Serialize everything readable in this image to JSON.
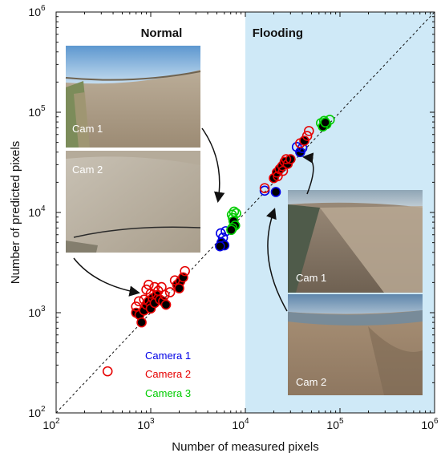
{
  "chart_data": {
    "type": "scatter",
    "x_scale": "log",
    "y_scale": "log",
    "xlabel": "Number of measured pixels",
    "ylabel": "Number of predicted pixels",
    "xlim": [
      100,
      1000000
    ],
    "ylim": [
      100,
      1000000
    ],
    "x_ticks": [
      {
        "base": "10",
        "exp": "2",
        "value": 100
      },
      {
        "base": "10",
        "exp": "3",
        "value": 1000
      },
      {
        "base": "10",
        "exp": "4",
        "value": 10000
      },
      {
        "base": "10",
        "exp": "5",
        "value": 100000
      },
      {
        "base": "10",
        "exp": "6",
        "value": 1000000
      }
    ],
    "y_ticks": [
      {
        "base": "10",
        "exp": "2",
        "value": 100
      },
      {
        "base": "10",
        "exp": "3",
        "value": 1000
      },
      {
        "base": "10",
        "exp": "4",
        "value": 10000
      },
      {
        "base": "10",
        "exp": "5",
        "value": 100000
      },
      {
        "base": "10",
        "exp": "6",
        "value": 1000000
      }
    ],
    "reference_line": "1:1 dashed",
    "flooding_region": {
      "x_min": 10000,
      "x_max": 1000000,
      "color": "#cfe9f7"
    },
    "annotations": [
      {
        "text": "Normal",
        "x": 1300,
        "y": 620000
      },
      {
        "text": "Flooding",
        "x": 22000,
        "y": 620000
      }
    ],
    "legend": {
      "placement": "lower-left",
      "entries": [
        {
          "label": "Camera 1",
          "color": "#0000e6"
        },
        {
          "label": "Camera 2",
          "color": "#e60000"
        },
        {
          "label": "Camera 3",
          "color": "#00cc00"
        }
      ]
    },
    "photo_labels": [
      {
        "text": "Cam 1",
        "group": "normal"
      },
      {
        "text": "Cam 2",
        "group": "normal"
      },
      {
        "text": "Cam 1",
        "group": "flooding"
      },
      {
        "text": "Cam 2",
        "group": "flooding"
      }
    ],
    "series": [
      {
        "name": "Camera 1",
        "color": "#0000e6",
        "points": [
          {
            "x": 5500,
            "y": 6200,
            "f": false
          },
          {
            "x": 6200,
            "y": 6500,
            "f": false
          },
          {
            "x": 5800,
            "y": 5600,
            "f": false
          },
          {
            "x": 5600,
            "y": 5000,
            "f": true
          },
          {
            "x": 6000,
            "y": 4700,
            "f": true
          },
          {
            "x": 5400,
            "y": 4600,
            "f": true
          },
          {
            "x": 21000,
            "y": 16000,
            "f": true
          },
          {
            "x": 16000,
            "y": 16500,
            "f": false
          },
          {
            "x": 38000,
            "y": 40000,
            "f": true
          },
          {
            "x": 40000,
            "y": 44000,
            "f": false
          },
          {
            "x": 35000,
            "y": 45000,
            "f": false
          }
        ]
      },
      {
        "name": "Camera 2",
        "color": "#e60000",
        "points": [
          {
            "x": 350,
            "y": 260,
            "f": false
          },
          {
            "x": 700,
            "y": 1000,
            "f": true
          },
          {
            "x": 760,
            "y": 950,
            "f": true
          },
          {
            "x": 800,
            "y": 800,
            "f": true
          },
          {
            "x": 850,
            "y": 1050,
            "f": true
          },
          {
            "x": 900,
            "y": 1200,
            "f": true
          },
          {
            "x": 950,
            "y": 1300,
            "f": true
          },
          {
            "x": 1000,
            "y": 1100,
            "f": true
          },
          {
            "x": 1050,
            "y": 1400,
            "f": true
          },
          {
            "x": 1100,
            "y": 1250,
            "f": true
          },
          {
            "x": 1150,
            "y": 1500,
            "f": true
          },
          {
            "x": 1250,
            "y": 1350,
            "f": true
          },
          {
            "x": 1350,
            "y": 1300,
            "f": true
          },
          {
            "x": 1450,
            "y": 1200,
            "f": true
          },
          {
            "x": 1900,
            "y": 1900,
            "f": true
          },
          {
            "x": 2050,
            "y": 2050,
            "f": true
          },
          {
            "x": 2200,
            "y": 2250,
            "f": true
          },
          {
            "x": 2000,
            "y": 1750,
            "f": true
          },
          {
            "x": 700,
            "y": 1150,
            "f": false
          },
          {
            "x": 900,
            "y": 1700,
            "f": false
          },
          {
            "x": 950,
            "y": 1900,
            "f": false
          },
          {
            "x": 1000,
            "y": 1550,
            "f": false
          },
          {
            "x": 1100,
            "y": 1800,
            "f": false
          },
          {
            "x": 1200,
            "y": 1650,
            "f": false
          },
          {
            "x": 1300,
            "y": 1800,
            "f": false
          },
          {
            "x": 1400,
            "y": 1500,
            "f": false
          },
          {
            "x": 1600,
            "y": 1600,
            "f": false
          },
          {
            "x": 1800,
            "y": 2100,
            "f": false
          },
          {
            "x": 2300,
            "y": 2600,
            "f": false
          },
          {
            "x": 750,
            "y": 1300,
            "f": false
          },
          {
            "x": 850,
            "y": 1350,
            "f": false
          },
          {
            "x": 16000,
            "y": 17500,
            "f": false
          },
          {
            "x": 20000,
            "y": 22000,
            "f": true
          },
          {
            "x": 21500,
            "y": 25000,
            "f": true
          },
          {
            "x": 23000,
            "y": 27000,
            "f": true
          },
          {
            "x": 24500,
            "y": 29000,
            "f": true
          },
          {
            "x": 26000,
            "y": 32000,
            "f": true
          },
          {
            "x": 28000,
            "y": 30500,
            "f": true
          },
          {
            "x": 30000,
            "y": 34000,
            "f": true
          },
          {
            "x": 22000,
            "y": 23000,
            "f": false
          },
          {
            "x": 25000,
            "y": 26000,
            "f": false
          },
          {
            "x": 27000,
            "y": 34000,
            "f": false
          },
          {
            "x": 38000,
            "y": 49000,
            "f": false
          },
          {
            "x": 42000,
            "y": 52000,
            "f": true
          },
          {
            "x": 45000,
            "y": 58000,
            "f": false
          },
          {
            "x": 47000,
            "y": 65000,
            "f": false
          }
        ]
      },
      {
        "name": "Camera 3",
        "color": "#00cc00",
        "points": [
          {
            "x": 7200,
            "y": 9500,
            "f": false
          },
          {
            "x": 7600,
            "y": 10200,
            "f": false
          },
          {
            "x": 8000,
            "y": 9800,
            "f": false
          },
          {
            "x": 7400,
            "y": 8800,
            "f": false
          },
          {
            "x": 7500,
            "y": 8200,
            "f": true
          },
          {
            "x": 7800,
            "y": 7400,
            "f": true
          },
          {
            "x": 7300,
            "y": 7000,
            "f": true
          },
          {
            "x": 7100,
            "y": 6700,
            "f": true
          },
          {
            "x": 63000,
            "y": 78000,
            "f": false
          },
          {
            "x": 68000,
            "y": 82000,
            "f": false
          },
          {
            "x": 78000,
            "y": 84000,
            "f": false
          },
          {
            "x": 72000,
            "y": 76000,
            "f": true
          },
          {
            "x": 66000,
            "y": 72000,
            "f": true
          },
          {
            "x": 70000,
            "y": 79000,
            "f": true
          }
        ]
      }
    ]
  }
}
